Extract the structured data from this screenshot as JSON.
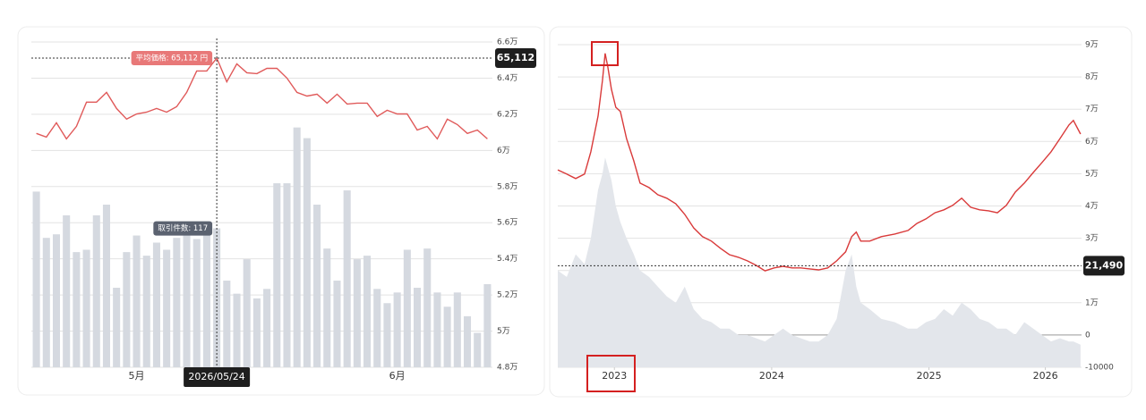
{
  "chart_data": [
    {
      "type": "combo",
      "categories": [
        null,
        null,
        null,
        null,
        null,
        null,
        null,
        null,
        null,
        null,
        "5月",
        null,
        null,
        null,
        null,
        null,
        null,
        null,
        null,
        null,
        null,
        null,
        null,
        null,
        null,
        null,
        null,
        null,
        null,
        null,
        null,
        null,
        null,
        null,
        null,
        null,
        "6月",
        null,
        null,
        null,
        null,
        null,
        null,
        null,
        null,
        null
      ],
      "series": [
        {
          "type": "line",
          "color": "#e05a5a",
          "values": [
            60940,
            60740,
            61530,
            60640,
            61330,
            62670,
            62670,
            63210,
            62320,
            61730,
            62020,
            62120,
            62320,
            62120,
            62420,
            63210,
            64400,
            64400,
            65112,
            63800,
            64790,
            64300,
            64250,
            64540,
            64540,
            64000,
            63210,
            63010,
            63110,
            62620,
            63110,
            62570,
            62620,
            62620,
            61880,
            62220,
            62020,
            62020,
            61130,
            61330,
            60640,
            61730,
            61430,
            60940,
            61130,
            60640
          ]
        },
        {
          "type": "bar",
          "axis": "y2",
          "color": "#d5d9e0",
          "values": [
            148,
            109,
            112,
            128,
            97,
            99,
            128,
            137,
            67,
            97,
            111,
            94,
            105,
            99,
            109,
            112,
            108,
            112,
            117,
            73,
            62,
            91,
            58,
            66,
            155,
            155,
            202,
            193,
            137,
            100,
            73,
            149,
            91,
            94,
            66,
            54,
            63,
            99,
            67,
            100,
            63,
            51,
            63,
            43,
            29,
            70
          ]
        }
      ],
      "ylim": [
        48000,
        66000
      ],
      "yticks": [
        {
          "value": 66000,
          "label": "6.6万"
        },
        {
          "value": 64000,
          "label": "6.4万"
        },
        {
          "value": 62000,
          "label": "6.2万"
        },
        {
          "value": 60000,
          "label": "6万"
        },
        {
          "value": 58000,
          "label": "5.8万"
        },
        {
          "value": 56000,
          "label": "5.6万"
        },
        {
          "value": 54000,
          "label": "5.4万"
        },
        {
          "value": 52000,
          "label": "5.2万"
        },
        {
          "value": 50000,
          "label": "5万"
        },
        {
          "value": 48000,
          "label": "4.8万"
        }
      ],
      "y2lim": [
        0,
        274
      ],
      "grid": true,
      "crosshair": {
        "value": 65112,
        "value_label": "65,112",
        "x_label": "2026/05/24",
        "tooltips": [
          "平均価格: 65,112 円",
          "取引件数: 117"
        ]
      }
    },
    {
      "type": "combo",
      "x": [
        2022.64,
        2022.697,
        2022.754,
        2022.81,
        2022.85,
        2022.896,
        2022.924,
        2022.941,
        2022.958,
        2022.981,
        2023.009,
        2023.038,
        2023.077,
        2023.123,
        2023.163,
        2023.22,
        2023.276,
        2023.333,
        2023.39,
        2023.447,
        2023.504,
        2023.56,
        2023.617,
        2023.674,
        2023.731,
        2023.788,
        2023.845,
        2023.901,
        2023.958,
        2024.015,
        2024.072,
        2024.129,
        2024.185,
        2024.242,
        2024.299,
        2024.356,
        2024.413,
        2024.47,
        2024.509,
        2024.538,
        2024.566,
        2024.623,
        2024.697,
        2024.782,
        2024.867,
        2024.924,
        2024.981,
        2025.038,
        2025.095,
        2025.151,
        2025.208,
        2025.265,
        2025.322,
        2025.379,
        2025.435,
        2025.492,
        2025.549,
        2025.606,
        2025.663,
        2025.719,
        2025.776,
        2025.833,
        2025.89,
        2025.918,
        2025.964
      ],
      "series": [
        {
          "type": "area",
          "axis": "y2",
          "color": "#e3e6eb",
          "values": [
            30,
            28,
            35,
            32,
            40,
            55,
            60,
            65,
            62,
            58,
            50,
            45,
            40,
            35,
            30,
            28,
            25,
            22,
            20,
            25,
            18,
            15,
            14,
            12,
            12,
            10,
            10,
            9,
            8,
            10,
            12,
            10,
            9,
            8,
            8,
            10,
            15,
            30,
            35,
            25,
            20,
            18,
            15,
            14,
            12,
            12,
            14,
            15,
            18,
            16,
            20,
            18,
            15,
            14,
            12,
            12,
            10,
            14,
            12,
            10,
            8,
            9,
            8,
            8,
            7
          ]
        },
        {
          "type": "line",
          "color": "#d93a3a",
          "values": [
            51200,
            49900,
            48500,
            49900,
            56800,
            67900,
            78900,
            87300,
            83100,
            76200,
            70600,
            69300,
            60900,
            54000,
            47100,
            45700,
            43500,
            42400,
            40700,
            37400,
            33200,
            30500,
            29100,
            26900,
            24900,
            24100,
            23000,
            21600,
            19900,
            20800,
            21300,
            20800,
            20800,
            20500,
            20200,
            20800,
            23000,
            25800,
            30500,
            31900,
            29100,
            29100,
            30500,
            31300,
            32400,
            34600,
            36000,
            37900,
            38800,
            40200,
            42400,
            39600,
            38800,
            38500,
            37900,
            40200,
            44300,
            47100,
            50400,
            53500,
            56800,
            60900,
            65100,
            66500,
            62300
          ]
        }
      ],
      "xlim": [
        2022.64,
        2025.97
      ],
      "xticks": [
        {
          "value": 2023,
          "label": "2023"
        },
        {
          "value": 2024,
          "label": "2024"
        },
        {
          "value": 2025,
          "label": "2025"
        },
        {
          "value": 2025.74,
          "label": "2026"
        }
      ],
      "ylim": [
        -10000,
        90000
      ],
      "yticks": [
        {
          "value": 90000,
          "label": "9万"
        },
        {
          "value": 80000,
          "label": "8万"
        },
        {
          "value": 70000,
          "label": "7万"
        },
        {
          "value": 60000,
          "label": "6万"
        },
        {
          "value": 50000,
          "label": "5万"
        },
        {
          "value": 40000,
          "label": "4万"
        },
        {
          "value": 30000,
          "label": "3万"
        },
        {
          "value": 20000,
          "label": "2万"
        },
        {
          "value": 10000,
          "label": "1万"
        },
        0,
        -10000
      ],
      "y2lim": [
        0,
        100
      ],
      "grid": true,
      "crosshair": {
        "value": 21490,
        "value_label": "21,490"
      }
    }
  ]
}
